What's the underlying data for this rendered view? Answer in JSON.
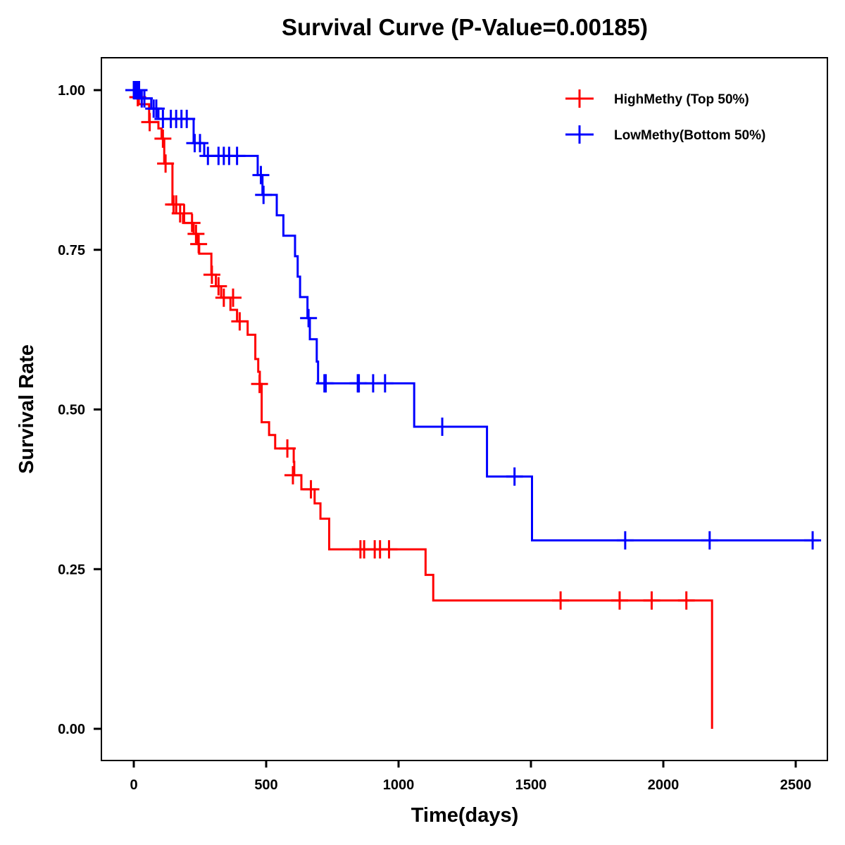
{
  "chart_data": {
    "type": "line",
    "subtype": "kaplan-meier-step",
    "title": "Survival Curve (P-Value=0.00185)",
    "xlabel": "Time(days)",
    "ylabel": "Survival Rate",
    "xlim": [
      -120,
      2600
    ],
    "ylim": [
      -0.05,
      1.05
    ],
    "xticks": [
      0,
      500,
      1000,
      1500,
      2000,
      2500
    ],
    "xtick_labels": [
      "0",
      "500",
      "1000",
      "1500",
      "2000",
      "2500"
    ],
    "yticks": [
      0,
      0.25,
      0.5,
      0.75,
      1.0
    ],
    "ytick_labels": [
      "0.00",
      "0.25",
      "0.50",
      "0.75",
      "1.00"
    ],
    "grid": false,
    "legend_position": "top-right",
    "series": [
      {
        "name": "HighMethy (Top 50%)",
        "color": "#ff0000",
        "steps": [
          [
            0,
            1.0
          ],
          [
            0,
            0.989
          ],
          [
            19,
            0.978
          ],
          [
            58,
            0.95
          ],
          [
            93,
            0.94
          ],
          [
            105,
            0.924
          ],
          [
            115,
            0.885
          ],
          [
            146,
            0.821
          ],
          [
            160,
            0.807
          ],
          [
            186,
            0.792
          ],
          [
            226,
            0.775
          ],
          [
            240,
            0.759
          ],
          [
            247,
            0.744
          ],
          [
            293,
            0.711
          ],
          [
            310,
            0.693
          ],
          [
            330,
            0.675
          ],
          [
            365,
            0.656
          ],
          [
            390,
            0.638
          ],
          [
            430,
            0.617
          ],
          [
            459,
            0.579
          ],
          [
            470,
            0.559
          ],
          [
            476,
            0.54
          ],
          [
            483,
            0.48
          ],
          [
            511,
            0.46
          ],
          [
            534,
            0.439
          ],
          [
            604,
            0.418
          ],
          [
            606,
            0.397
          ],
          [
            633,
            0.375
          ],
          [
            683,
            0.353
          ],
          [
            705,
            0.329
          ],
          [
            738,
            0.281
          ],
          [
            1102,
            0.241
          ],
          [
            1131,
            0.201
          ],
          [
            2184,
            0.0
          ]
        ],
        "end_time": 2184,
        "censored": [
          [
            15,
            0.989
          ],
          [
            60,
            0.95
          ],
          [
            110,
            0.924
          ],
          [
            120,
            0.885
          ],
          [
            150,
            0.821
          ],
          [
            160,
            0.821
          ],
          [
            175,
            0.807
          ],
          [
            190,
            0.807
          ],
          [
            220,
            0.792
          ],
          [
            235,
            0.775
          ],
          [
            245,
            0.759
          ],
          [
            295,
            0.711
          ],
          [
            320,
            0.693
          ],
          [
            340,
            0.675
          ],
          [
            375,
            0.675
          ],
          [
            400,
            0.638
          ],
          [
            475,
            0.54
          ],
          [
            580,
            0.439
          ],
          [
            601,
            0.397
          ],
          [
            669,
            0.375
          ],
          [
            856,
            0.281
          ],
          [
            870,
            0.281
          ],
          [
            910,
            0.281
          ],
          [
            930,
            0.281
          ],
          [
            964,
            0.281
          ],
          [
            1612,
            0.201
          ],
          [
            1835,
            0.201
          ],
          [
            1956,
            0.201
          ],
          [
            2087,
            0.201
          ]
        ]
      },
      {
        "name": "LowMethy(Bottom 50%)",
        "color": "#0000ff",
        "steps": [
          [
            0,
            1.0
          ],
          [
            27,
            0.987
          ],
          [
            66,
            0.971
          ],
          [
            93,
            0.955
          ],
          [
            226,
            0.917
          ],
          [
            266,
            0.897
          ],
          [
            468,
            0.867
          ],
          [
            486,
            0.836
          ],
          [
            540,
            0.804
          ],
          [
            565,
            0.772
          ],
          [
            609,
            0.74
          ],
          [
            619,
            0.708
          ],
          [
            628,
            0.676
          ],
          [
            656,
            0.643
          ],
          [
            665,
            0.61
          ],
          [
            691,
            0.575
          ],
          [
            696,
            0.541
          ],
          [
            1059,
            0.473
          ],
          [
            1334,
            0.395
          ],
          [
            1504,
            0.295
          ]
        ],
        "end_time": 2588,
        "censored": [
          [
            0,
            1.0
          ],
          [
            8,
            1.0
          ],
          [
            14,
            1.0
          ],
          [
            20,
            1.0
          ],
          [
            30,
            0.987
          ],
          [
            40,
            0.987
          ],
          [
            75,
            0.971
          ],
          [
            85,
            0.971
          ],
          [
            110,
            0.955
          ],
          [
            140,
            0.955
          ],
          [
            160,
            0.955
          ],
          [
            180,
            0.955
          ],
          [
            200,
            0.955
          ],
          [
            230,
            0.917
          ],
          [
            250,
            0.917
          ],
          [
            280,
            0.897
          ],
          [
            320,
            0.897
          ],
          [
            340,
            0.897
          ],
          [
            360,
            0.897
          ],
          [
            390,
            0.897
          ],
          [
            480,
            0.867
          ],
          [
            490,
            0.836
          ],
          [
            660,
            0.643
          ],
          [
            720,
            0.541
          ],
          [
            725,
            0.541
          ],
          [
            846,
            0.541
          ],
          [
            850,
            0.541
          ],
          [
            904,
            0.541
          ],
          [
            949,
            0.541
          ],
          [
            1165,
            0.473
          ],
          [
            1438,
            0.395
          ],
          [
            1856,
            0.295
          ],
          [
            2175,
            0.295
          ],
          [
            2564,
            0.295
          ]
        ]
      }
    ]
  }
}
